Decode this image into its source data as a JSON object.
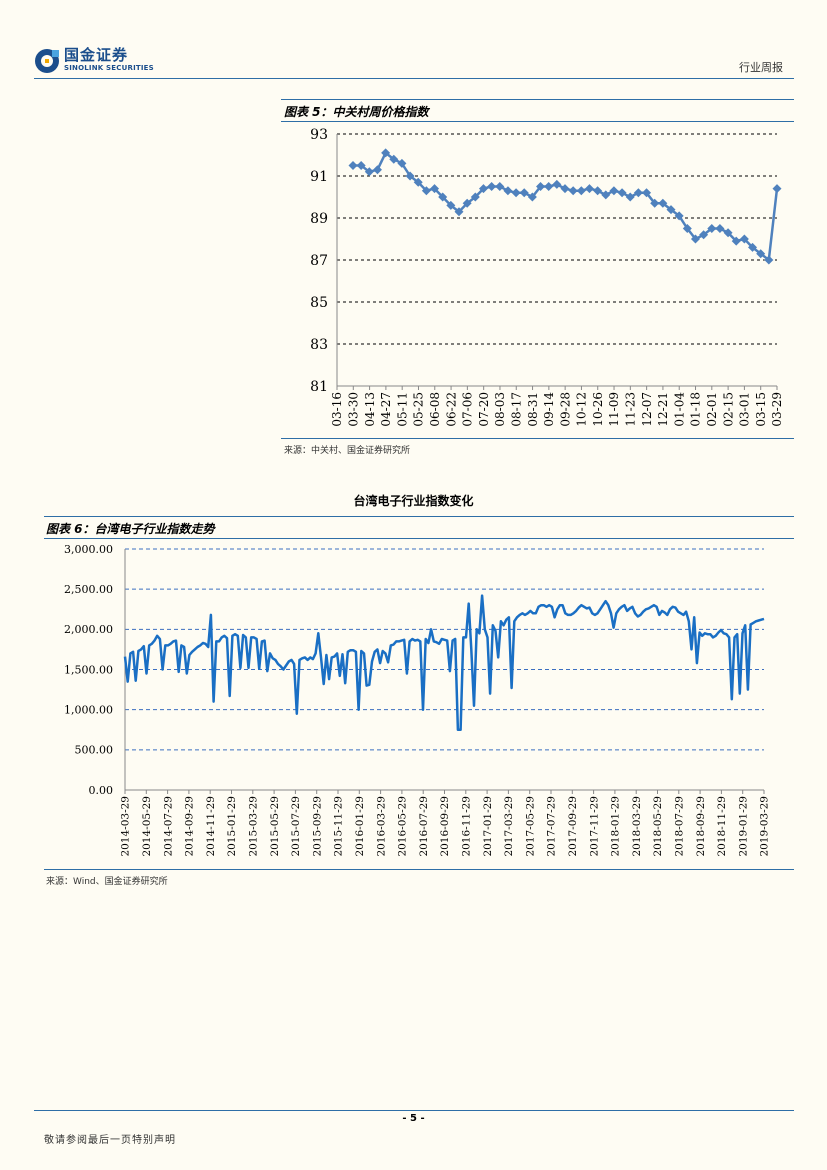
{
  "header": {
    "logo_cn": "国金证券",
    "logo_en": "SINOLINK SECURITIES",
    "report_type": "行业周报",
    "brand_color": "#1b4e8c"
  },
  "chart5": {
    "label": "图表 5：中关村周价格指数",
    "source": "来源：中关村、国金证券研究所"
  },
  "section_heading": "台湾电子行业指数变化",
  "chart6": {
    "label": "图表 6：台湾电子行业指数走势",
    "source": "来源：Wind、国金证券研究所"
  },
  "footer": {
    "page_number": "- 5 -",
    "disclaimer": "敬请参阅最后一页特别声明"
  },
  "chart_data": [
    {
      "type": "line",
      "title": "图表 5：中关村周价格指数",
      "color": "#4f81bd",
      "marker": "diamond",
      "ylim": [
        81,
        93
      ],
      "yticks": [
        "93",
        "91",
        "89",
        "87",
        "85",
        "83",
        "81"
      ],
      "ytick_values": [
        93,
        91,
        89,
        87,
        85,
        83,
        81
      ],
      "xticks": [
        "03-16",
        "03-30",
        "04-13",
        "04-27",
        "05-11",
        "05-25",
        "06-08",
        "06-22",
        "07-06",
        "07-20",
        "08-03",
        "08-17",
        "08-31",
        "09-14",
        "09-28",
        "10-12",
        "10-26",
        "11-09",
        "11-23",
        "12-07",
        "12-21",
        "01-04",
        "01-18",
        "02-01",
        "02-15",
        "03-01",
        "03-15",
        "03-29"
      ],
      "values": [
        91.5,
        91.5,
        91.2,
        91.3,
        92.1,
        91.8,
        91.6,
        91.0,
        90.7,
        90.3,
        90.4,
        90.0,
        89.6,
        89.3,
        89.7,
        90.0,
        90.4,
        90.5,
        90.5,
        90.3,
        90.2,
        90.2,
        90.0,
        90.5,
        90.5,
        90.6,
        90.4,
        90.3,
        90.3,
        90.4,
        90.3,
        90.1,
        90.3,
        90.2,
        90.0,
        90.2,
        90.2,
        89.7,
        89.7,
        89.4,
        89.1,
        88.5,
        88.0,
        88.2,
        88.5,
        88.5,
        88.3,
        87.9,
        88.0,
        87.6,
        87.3,
        87.0,
        90.4
      ]
    },
    {
      "type": "line",
      "title": "图表 6：台湾电子行业指数走势",
      "color": "#1a6fc4",
      "ylim": [
        0,
        3000
      ],
      "yticks": [
        "3,000.00",
        "2,500.00",
        "2,000.00",
        "1,500.00",
        "1,000.00",
        "500.00",
        "0.00"
      ],
      "ytick_values": [
        3000,
        2500,
        2000,
        1500,
        1000,
        500,
        0
      ],
      "xticks": [
        "2014-03-29",
        "2014-05-29",
        "2014-07-29",
        "2014-09-29",
        "2014-11-29",
        "2015-01-29",
        "2015-03-29",
        "2015-05-29",
        "2015-07-29",
        "2015-09-29",
        "2015-11-29",
        "2016-01-29",
        "2016-03-29",
        "2016-05-29",
        "2016-07-29",
        "2016-09-29",
        "2016-11-29",
        "2017-01-29",
        "2017-03-29",
        "2017-05-29",
        "2017-07-29",
        "2017-09-29",
        "2017-11-29",
        "2018-01-29",
        "2018-03-29",
        "2018-05-29",
        "2018-07-29",
        "2018-09-29",
        "2018-11-29",
        "2019-01-29",
        "2019-03-29"
      ],
      "values": [
        1660,
        1350,
        1700,
        1720,
        1360,
        1730,
        1750,
        1790,
        1450,
        1800,
        1820,
        1860,
        1920,
        1880,
        1500,
        1800,
        1800,
        1820,
        1850,
        1860,
        1470,
        1800,
        1780,
        1450,
        1680,
        1720,
        1750,
        1780,
        1800,
        1830,
        1820,
        1780,
        2180,
        1100,
        1850,
        1850,
        1900,
        1920,
        1890,
        1170,
        1920,
        1940,
        1920,
        1520,
        1930,
        1900,
        1520,
        1900,
        1900,
        1880,
        1510,
        1850,
        1860,
        1480,
        1700,
        1640,
        1620,
        1570,
        1540,
        1500,
        1550,
        1600,
        1620,
        1570,
        950,
        1620,
        1640,
        1650,
        1620,
        1650,
        1630,
        1700,
        1950,
        1650,
        1320,
        1680,
        1380,
        1650,
        1660,
        1700,
        1420,
        1690,
        1330,
        1720,
        1740,
        1740,
        1720,
        1000,
        1730,
        1700,
        1300,
        1310,
        1600,
        1720,
        1750,
        1580,
        1730,
        1700,
        1590,
        1800,
        1810,
        1850,
        1850,
        1860,
        1870,
        1450,
        1850,
        1880,
        1860,
        1870,
        1850,
        1000,
        1880,
        1830,
        2000,
        1850,
        1840,
        1820,
        1880,
        1870,
        1860,
        1480,
        1860,
        1880,
        750,
        750,
        1900,
        1900,
        2320,
        1750,
        1050,
        2000,
        1950,
        2420,
        2000,
        1900,
        1200,
        2050,
        1980,
        1650,
        2100,
        2050,
        2120,
        2150,
        1270,
        2100,
        2150,
        2180,
        2200,
        2180,
        2200,
        2230,
        2200,
        2200,
        2280,
        2300,
        2300,
        2280,
        2300,
        2280,
        2150,
        2250,
        2300,
        2300,
        2200,
        2180,
        2180,
        2200,
        2230,
        2270,
        2300,
        2280,
        2260,
        2270,
        2200,
        2180,
        2200,
        2250,
        2300,
        2350,
        2300,
        2200,
        2020,
        2200,
        2250,
        2280,
        2300,
        2230,
        2260,
        2280,
        2200,
        2160,
        2180,
        2220,
        2250,
        2260,
        2280,
        2300,
        2280,
        2180,
        2230,
        2210,
        2180,
        2250,
        2280,
        2270,
        2220,
        2200,
        2180,
        2220,
        2100,
        1750,
        2150,
        1580,
        1960,
        1920,
        1950,
        1940,
        1940,
        1900,
        1920,
        1960,
        1990,
        1950,
        1940,
        1900,
        1130,
        1900,
        1940,
        1200,
        1950,
        2050,
        1250,
        2060,
        2080,
        2100,
        2110,
        2120,
        2130
      ]
    }
  ]
}
